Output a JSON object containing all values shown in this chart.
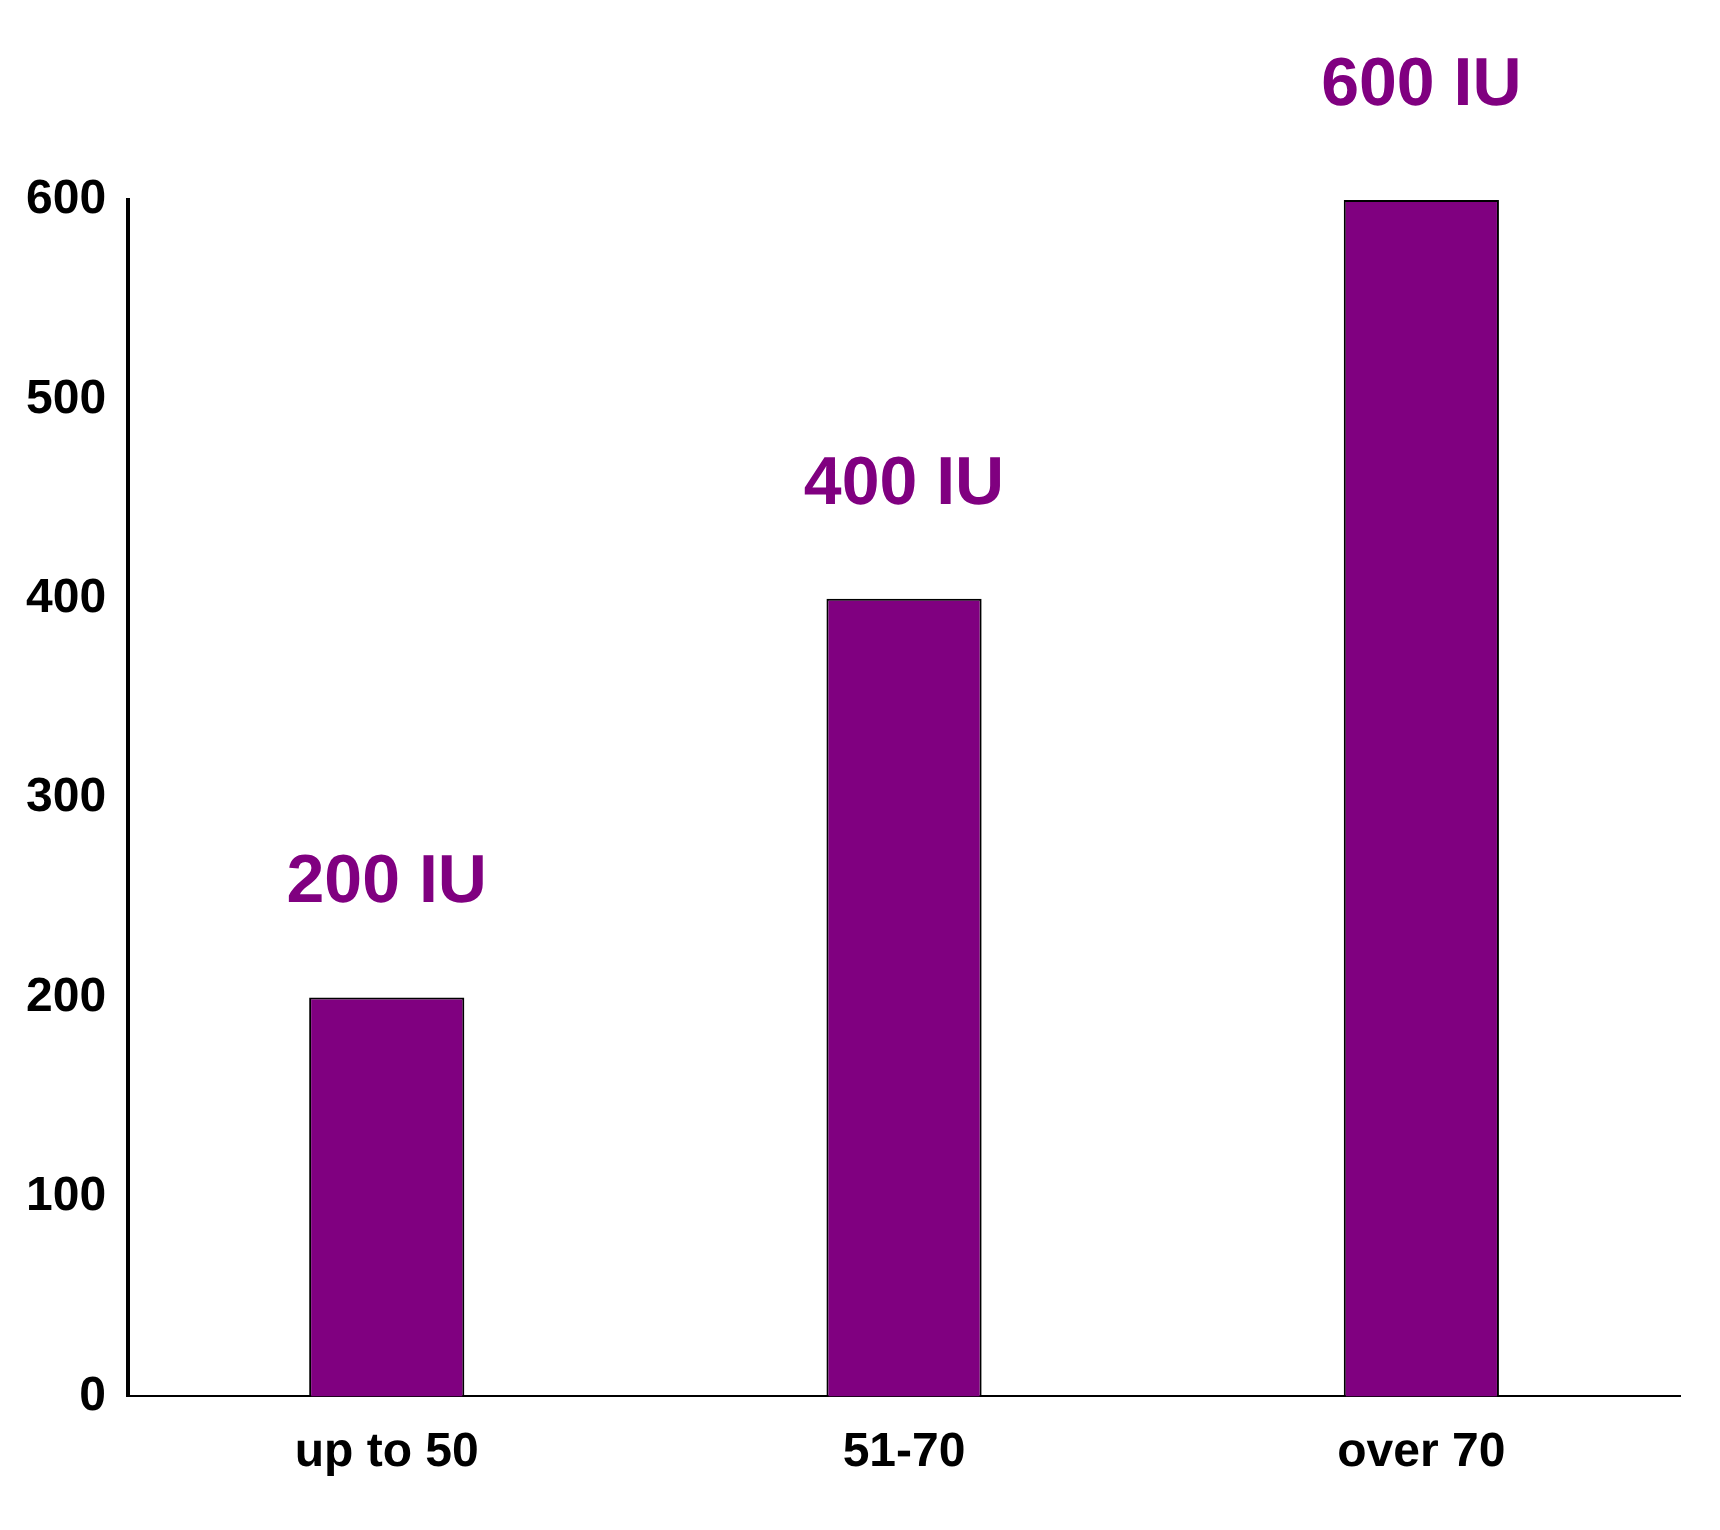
{
  "chart_data": {
    "type": "bar",
    "categories": [
      "up to 50",
      "51-70",
      "over 70"
    ],
    "values": [
      200,
      400,
      600
    ],
    "color": "#800080",
    "value_labels": [
      "200 IU",
      "400 IU",
      "600 IU"
    ],
    "ylim": [
      0,
      600
    ],
    "yticks": [
      0,
      100,
      200,
      300,
      400,
      500,
      600
    ],
    "grid": false,
    "legend": false
  }
}
